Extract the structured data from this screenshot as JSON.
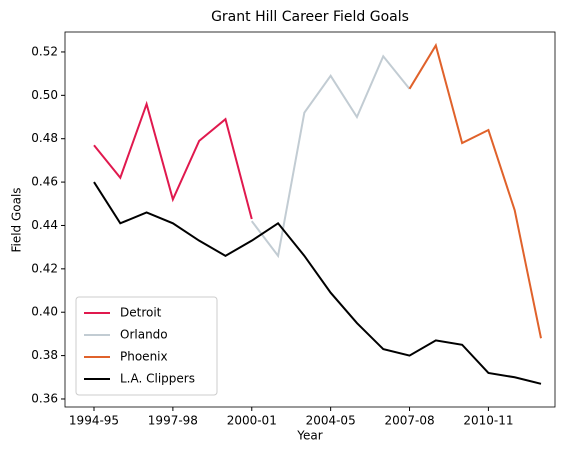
{
  "chart_data": {
    "type": "line",
    "title": "Grant Hill Career Field Goals",
    "x_label": "Year",
    "y_label": "Field Goals",
    "categories": [
      "1994-95",
      null,
      null,
      "1997-98",
      null,
      null,
      "2000-01",
      null,
      null,
      "2004-05",
      null,
      null,
      "2007-08",
      null,
      null,
      "2010-11",
      null,
      null
    ],
    "series": [
      {
        "name": "Detroit",
        "color": "#e0194e",
        "values": [
          0.477,
          0.462,
          0.496,
          0.452,
          0.479,
          0.489,
          0.443,
          null,
          null,
          null,
          null,
          null,
          null,
          null,
          null,
          null,
          null,
          null
        ]
      },
      {
        "name": "Orlando",
        "color": "#c2ccd3",
        "values": [
          null,
          null,
          null,
          null,
          null,
          null,
          0.442,
          0.426,
          0.492,
          0.509,
          0.49,
          0.518,
          0.503,
          null,
          null,
          null,
          null,
          null
        ]
      },
      {
        "name": "Phoenix",
        "color": "#e0622b",
        "values": [
          null,
          null,
          null,
          null,
          null,
          null,
          null,
          null,
          null,
          null,
          null,
          null,
          0.503,
          0.523,
          0.478,
          0.484,
          0.447,
          0.388
        ]
      },
      {
        "name": "L.A. Clippers",
        "color": "#000000",
        "values": [
          0.46,
          0.441,
          0.446,
          0.441,
          0.433,
          0.426,
          0.433,
          0.441,
          0.426,
          0.409,
          0.395,
          0.383,
          0.38,
          0.387,
          0.385,
          0.372,
          0.37,
          0.367
        ]
      }
    ],
    "ylim": [
      0.3563,
      0.5292
    ],
    "yticks": [
      0.36,
      0.38,
      {
        "value": 0.4,
        "label": "0.40"
      },
      0.42,
      0.44,
      0.46,
      0.48,
      {
        "value": 0.5,
        "label": "0.50"
      },
      0.52
    ],
    "legend": "lower left",
    "grid": false
  }
}
